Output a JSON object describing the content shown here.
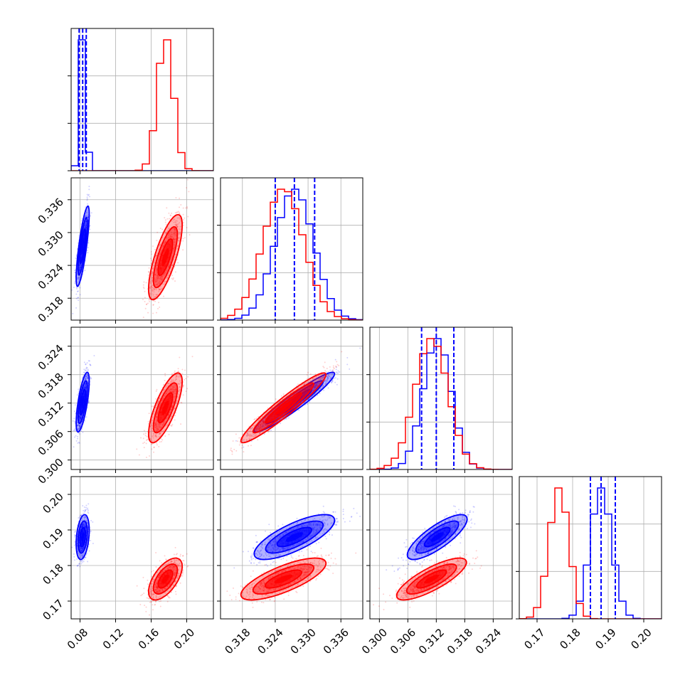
{
  "chart_data": {
    "type": "corner",
    "colors": {
      "blue": "#0000ff",
      "red": "#ff0000",
      "grid": "#b0b0b0"
    },
    "parameters": [
      {
        "range": [
          0.07,
          0.23
        ],
        "ticks": [
          "0.08",
          "0.12",
          "0.16",
          "0.20"
        ]
      },
      {
        "range": [
          0.314,
          0.34
        ],
        "ticks": [
          "0.318",
          "0.324",
          "0.330",
          "0.336"
        ]
      },
      {
        "range": [
          0.298,
          0.328
        ],
        "ticks": [
          "0.300",
          "0.306",
          "0.312",
          "0.318",
          "0.324"
        ]
      },
      {
        "range": [
          0.165,
          0.205
        ],
        "ticks": [
          "0.17",
          "0.18",
          "0.19",
          "0.20"
        ]
      }
    ],
    "series": [
      {
        "color": "blue",
        "means": [
          0.083,
          0.3275,
          0.3122,
          0.188
        ],
        "sds": [
          0.0035,
          0.0035,
          0.003,
          0.003
        ],
        "corr": [
          [
            1,
            0.8,
            0.7,
            0.3
          ],
          [
            0.8,
            1,
            0.95,
            0.75
          ],
          [
            0.7,
            0.95,
            1,
            0.8
          ],
          [
            0.3,
            0.75,
            0.8,
            1
          ]
        ]
      },
      {
        "color": "red",
        "means": [
          0.176,
          0.3255,
          0.311,
          0.1762
        ],
        "sds": [
          0.009,
          0.0037,
          0.0035,
          0.0028
        ],
        "corr": [
          [
            1,
            0.75,
            0.75,
            0.6
          ],
          [
            0.75,
            1,
            0.95,
            0.75
          ],
          [
            0.75,
            0.95,
            1,
            0.8
          ],
          [
            0.6,
            0.75,
            0.8,
            1
          ]
        ]
      }
    ],
    "quantile_lines": [
      [
        0.079,
        0.083,
        0.087
      ],
      [
        0.324,
        0.3275,
        0.3312
      ],
      [
        0.3089,
        0.312,
        0.3157
      ],
      [
        0.185,
        0.188,
        0.192
      ]
    ],
    "grid": true
  }
}
